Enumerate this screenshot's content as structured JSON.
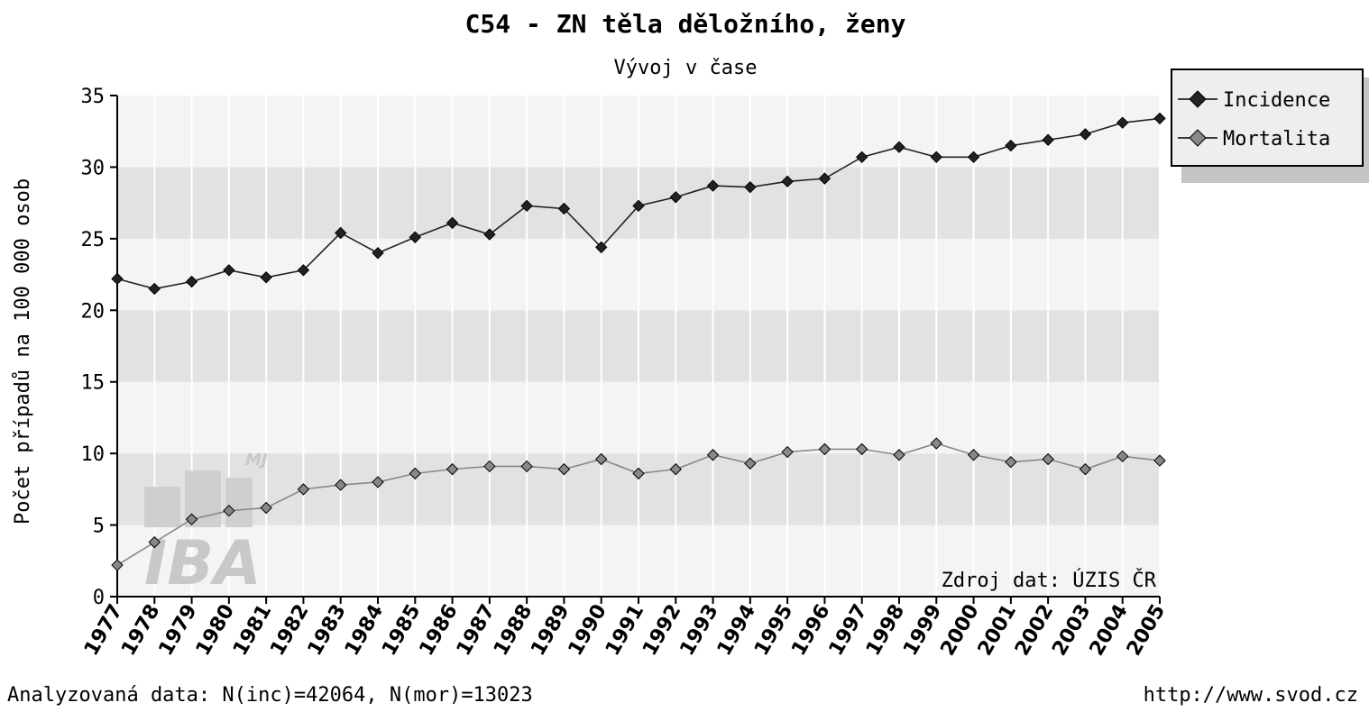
{
  "chart_data": {
    "type": "line",
    "title": "C54 - ZN těla děložního, ženy",
    "subtitle": "Vývoj v čase",
    "ylabel": "Počet případů na 100 000 osob",
    "xlabel": "",
    "ylim": [
      0,
      35
    ],
    "yticks": [
      "0",
      "5",
      "10",
      "15",
      "20",
      "25",
      "30",
      "35"
    ],
    "grid": true,
    "legend_position": "top-right",
    "categories": [
      "1977",
      "1978",
      "1979",
      "1980",
      "1981",
      "1982",
      "1983",
      "1984",
      "1985",
      "1986",
      "1987",
      "1988",
      "1989",
      "1990",
      "1991",
      "1992",
      "1993",
      "1994",
      "1995",
      "1996",
      "1997",
      "1998",
      "1999",
      "2000",
      "2001",
      "2002",
      "2003",
      "2004",
      "2005"
    ],
    "series": [
      {
        "name": "Incidence",
        "color": "#222222",
        "values": [
          22.2,
          21.5,
          22.0,
          22.8,
          22.3,
          22.8,
          25.4,
          24.0,
          25.1,
          26.1,
          25.3,
          27.3,
          27.1,
          24.4,
          27.3,
          27.9,
          28.7,
          28.6,
          29.0,
          29.2,
          30.7,
          31.4,
          30.7,
          30.7,
          31.5,
          31.9,
          32.3,
          33.1,
          33.4
        ]
      },
      {
        "name": "Mortalita",
        "color": "#888888",
        "values": [
          2.2,
          3.8,
          5.4,
          6.0,
          6.2,
          7.5,
          7.8,
          8.0,
          8.6,
          8.9,
          9.1,
          9.1,
          8.9,
          9.6,
          8.6,
          8.9,
          9.9,
          9.3,
          10.1,
          10.3,
          10.3,
          9.9,
          10.7,
          9.9,
          9.4,
          9.6,
          8.9,
          9.8,
          9.5
        ]
      }
    ],
    "source_note": "Zdroj dat: ÚZIS ČR"
  },
  "footer": {
    "left": "Analyzovaná data: N(inc)=42064, N(mor)=13023",
    "right": "http://www.svod.cz"
  },
  "watermark": {
    "logo_text": "IBA",
    "small_text": "MJ"
  }
}
